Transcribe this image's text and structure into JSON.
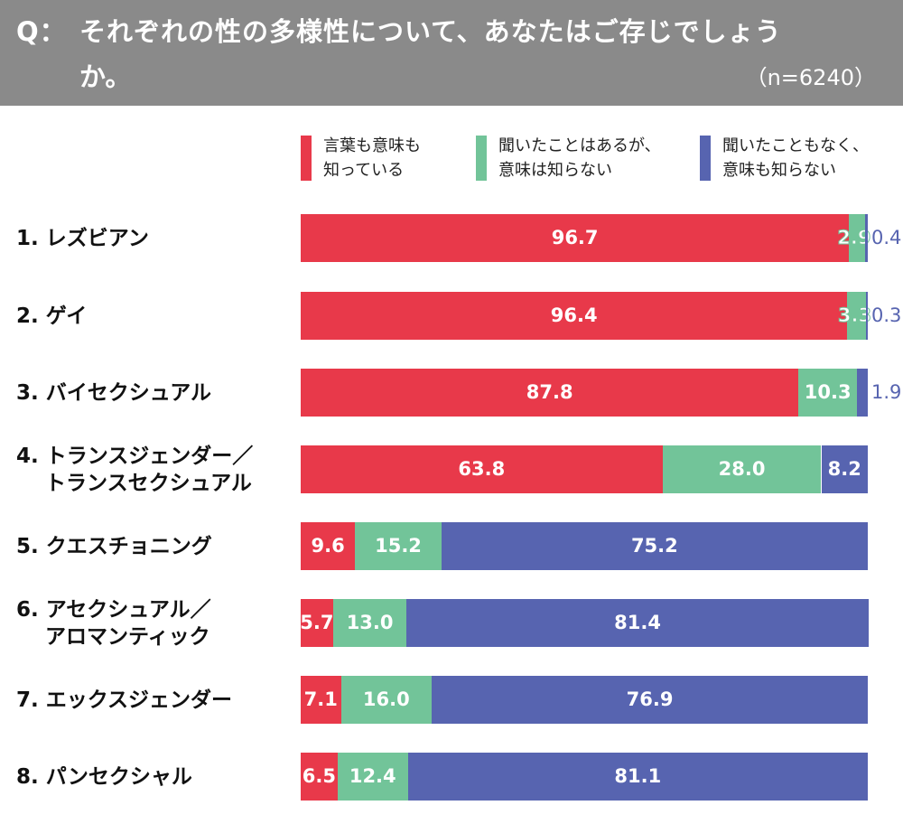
{
  "header": {
    "q": "Q：",
    "title_line1": "それぞれの性の多様性について、あなたはご存じでしょう",
    "title_line2": "か。",
    "n": "（n=6240）"
  },
  "colors": {
    "header": "#8a8a8a",
    "known": "#e8394a",
    "heard": "#72c499",
    "unknown": "#5764b0"
  },
  "chart_data": {
    "type": "bar",
    "orientation": "horizontal",
    "stacked": true,
    "xlim": [
      0,
      100
    ],
    "legend": "top",
    "series": [
      {
        "name": "言葉も意味も\n知っている",
        "color": "#e8394a",
        "values": [
          96.7,
          96.4,
          87.8,
          63.8,
          9.6,
          5.7,
          7.1,
          6.5
        ]
      },
      {
        "name": "聞いたことはあるが、\n意味は知らない",
        "color": "#72c499",
        "values": [
          2.9,
          3.3,
          10.3,
          28.0,
          15.2,
          13.0,
          16.0,
          12.4
        ]
      },
      {
        "name": "聞いたこともなく、\n意味も知らない",
        "color": "#5764b0",
        "values": [
          0.4,
          0.3,
          1.9,
          8.2,
          75.2,
          81.4,
          76.9,
          81.1
        ]
      }
    ],
    "categories": [
      "1. レズビアン",
      "2. ゲイ",
      "3. バイセクシュアル",
      "4. トランスジェンダー／\n    トランスセクシュアル",
      "5. クエスチョニング",
      "6. アセクシュアル／\n    アロマンティック",
      "7. エックスジェンダー",
      "8. パンセクシャル"
    ]
  }
}
